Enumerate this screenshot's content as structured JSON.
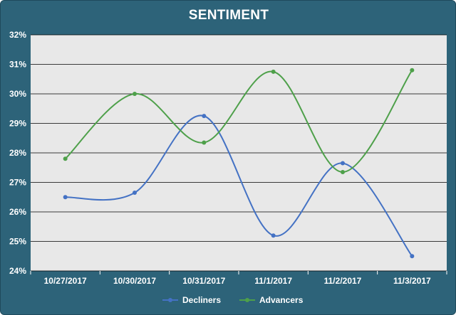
{
  "chart_data": {
    "type": "line",
    "title": "SENTIMENT",
    "categories": [
      "10/27/2017",
      "10/30/2017",
      "10/31/2017",
      "11/1/2017",
      "11/2/2017",
      "11/3/2017"
    ],
    "y_ticks": [
      "24%",
      "25%",
      "26%",
      "27%",
      "28%",
      "29%",
      "30%",
      "31%",
      "32%"
    ],
    "ylim": [
      24,
      32
    ],
    "y_unit": "%",
    "grid": true,
    "smooth": true,
    "legend_position": "bottom",
    "series": [
      {
        "name": "Decliners",
        "color": "#4472c4",
        "values": [
          26.5,
          26.65,
          29.25,
          25.2,
          27.65,
          24.5
        ]
      },
      {
        "name": "Advancers",
        "color": "#4ea04a",
        "values": [
          27.8,
          30.0,
          28.35,
          30.75,
          27.35,
          30.8
        ]
      }
    ]
  },
  "colors": {
    "background": "#2d6379",
    "plot_area": "#e8e8e8",
    "gridline": "#000000",
    "text": "#ffffff"
  }
}
